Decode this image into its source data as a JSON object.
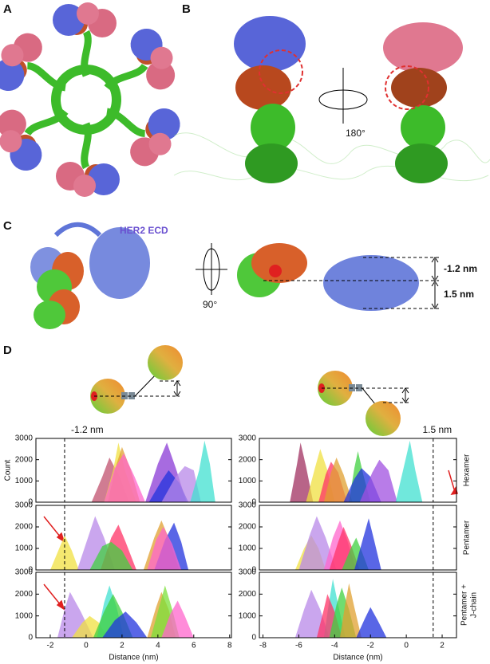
{
  "panel_labels": [
    "A",
    "B",
    "C",
    "D"
  ],
  "panel_b": {
    "rotation": "180°"
  },
  "panel_c": {
    "protein": "HER2 ECD",
    "rotation": "90°",
    "offsets": [
      "-1.2 nm",
      "1.5 nm"
    ]
  },
  "chart_data": [
    {
      "type": "area",
      "ylabel": "Count",
      "xlim": [
        -2.8,
        8.1
      ],
      "ylim": [
        0,
        3000
      ],
      "yticks": [
        0,
        1000,
        2000,
        3000
      ],
      "reference_line": {
        "x": -1.2,
        "label": "-1.2 nm"
      },
      "series": [
        {
          "color": "#c0506e",
          "x": [
            0.3,
            0.9,
            1.3,
            1.8,
            2.4
          ],
          "values": [
            0,
            1200,
            2100,
            1300,
            0
          ]
        },
        {
          "color": "#f0e040",
          "x": [
            1.0,
            1.5,
            1.8,
            2.2,
            2.8
          ],
          "values": [
            0,
            1500,
            2800,
            1400,
            0
          ]
        },
        {
          "color": "#e0a030",
          "x": [
            1.2,
            1.7,
            2.0,
            2.5,
            3.0
          ],
          "values": [
            0,
            1800,
            2600,
            1500,
            0
          ]
        },
        {
          "color": "#ff66cc",
          "x": [
            1.0,
            1.6,
            2.1,
            2.7,
            3.3
          ],
          "values": [
            0,
            1600,
            2300,
            1200,
            0
          ]
        },
        {
          "color": "#8a3ad6",
          "x": [
            3.3,
            4.0,
            4.5,
            5.0,
            5.6
          ],
          "values": [
            0,
            1800,
            2800,
            1600,
            0
          ]
        },
        {
          "color": "#2233dd",
          "x": [
            3.5,
            4.2,
            4.6,
            5.2,
            5.7
          ],
          "values": [
            0,
            1000,
            1500,
            900,
            0
          ]
        },
        {
          "color": "#b888e8",
          "x": [
            4.2,
            5.0,
            5.5,
            6.0,
            6.4
          ],
          "values": [
            0,
            1200,
            1700,
            1500,
            0
          ]
        },
        {
          "color": "#40e0d0",
          "x": [
            5.8,
            6.3,
            6.6,
            6.9,
            7.2
          ],
          "values": [
            0,
            1500,
            2900,
            1800,
            0
          ]
        }
      ]
    },
    {
      "type": "area",
      "row_label": [
        "Hexamer"
      ],
      "xlim": [
        -8.2,
        2.8
      ],
      "ylim": [
        0,
        3000
      ],
      "yticks": [
        0,
        1000,
        2000,
        3000
      ],
      "reference_line": {
        "x": 1.5,
        "label": "1.5 nm"
      },
      "series": [
        {
          "color": "#a03060",
          "x": [
            -6.5,
            -6.1,
            -5.9,
            -5.6,
            -5.2
          ],
          "values": [
            0,
            1800,
            2800,
            1700,
            0
          ]
        },
        {
          "color": "#f0e040",
          "x": [
            -5.6,
            -5.1,
            -4.8,
            -4.4,
            -4.0
          ],
          "values": [
            0,
            1600,
            2500,
            1500,
            0
          ]
        },
        {
          "color": "#ff3366",
          "x": [
            -4.9,
            -4.5,
            -4.2,
            -3.8,
            -3.3
          ],
          "values": [
            0,
            1300,
            1900,
            1400,
            0
          ]
        },
        {
          "color": "#e0a030",
          "x": [
            -4.6,
            -4.2,
            -3.9,
            -3.5,
            -3.0
          ],
          "values": [
            0,
            1400,
            2100,
            1300,
            0
          ]
        },
        {
          "color": "#40d040",
          "x": [
            -3.2,
            -2.9,
            -2.7,
            -2.4,
            -2.0
          ],
          "values": [
            0,
            1600,
            2400,
            1300,
            0
          ]
        },
        {
          "color": "#2233dd",
          "x": [
            -3.5,
            -2.9,
            -2.5,
            -2.0,
            -1.4
          ],
          "values": [
            0,
            1100,
            1600,
            1200,
            0
          ]
        },
        {
          "color": "#a050e0",
          "x": [
            -2.6,
            -1.9,
            -1.5,
            -1.0,
            -0.5
          ],
          "values": [
            0,
            1400,
            2000,
            1500,
            0
          ]
        },
        {
          "color": "#40e0d0",
          "x": [
            -0.6,
            -0.1,
            0.2,
            0.5,
            0.9
          ],
          "values": [
            0,
            1800,
            2900,
            1500,
            0
          ]
        }
      ]
    },
    {
      "type": "area",
      "xlim": [
        -2.8,
        8.1
      ],
      "ylim": [
        0,
        3000
      ],
      "yticks": [
        0,
        1000,
        2000,
        3000
      ],
      "reference_line": {
        "x": -1.2
      },
      "series": [
        {
          "color": "#f0e040",
          "x": [
            -2.0,
            -1.5,
            -1.2,
            -0.8,
            -0.4
          ],
          "values": [
            0,
            1000,
            1600,
            900,
            0
          ]
        },
        {
          "color": "#b888e8",
          "x": [
            -0.5,
            0.1,
            0.5,
            1.0,
            1.6
          ],
          "values": [
            0,
            1500,
            2500,
            1500,
            0
          ]
        },
        {
          "color": "#ff3366",
          "x": [
            0.8,
            1.4,
            1.8,
            2.2,
            2.8
          ],
          "values": [
            0,
            1500,
            2100,
            1300,
            0
          ]
        },
        {
          "color": "#40d040",
          "x": [
            0.2,
            0.9,
            1.4,
            2.0,
            2.6
          ],
          "values": [
            0,
            1100,
            1300,
            900,
            0
          ]
        },
        {
          "color": "#e0a030",
          "x": [
            3.2,
            3.8,
            4.2,
            4.6,
            5.2
          ],
          "values": [
            0,
            1500,
            2300,
            1500,
            0
          ]
        },
        {
          "color": "#2233dd",
          "x": [
            3.8,
            4.4,
            4.9,
            5.3,
            5.7
          ],
          "values": [
            0,
            1400,
            2200,
            1300,
            0
          ]
        },
        {
          "color": "#ff66cc",
          "x": [
            3.4,
            3.9,
            4.3,
            4.8,
            5.3
          ],
          "values": [
            0,
            1400,
            2000,
            1200,
            0
          ]
        }
      ]
    },
    {
      "type": "area",
      "row_label": [
        "Pentamer"
      ],
      "xlim": [
        -8.2,
        2.8
      ],
      "ylim": [
        0,
        3000
      ],
      "yticks": [
        0,
        1000,
        2000,
        3000
      ],
      "reference_line": {
        "x": 1.5
      },
      "series": [
        {
          "color": "#f0e040",
          "x": [
            -6.2,
            -5.7,
            -5.3,
            -4.9,
            -4.5
          ],
          "values": [
            0,
            1000,
            1600,
            1000,
            0
          ]
        },
        {
          "color": "#b888e8",
          "x": [
            -6.0,
            -5.4,
            -5.0,
            -4.5,
            -3.9
          ],
          "values": [
            0,
            1600,
            2500,
            1500,
            0
          ]
        },
        {
          "color": "#ff66cc",
          "x": [
            -4.6,
            -4.1,
            -3.7,
            -3.3,
            -2.8
          ],
          "values": [
            0,
            1500,
            2300,
            1400,
            0
          ]
        },
        {
          "color": "#ff3366",
          "x": [
            -4.3,
            -3.8,
            -3.5,
            -3.1,
            -2.6
          ],
          "values": [
            0,
            1300,
            2000,
            1200,
            0
          ]
        },
        {
          "color": "#40d040",
          "x": [
            -3.6,
            -3.1,
            -2.8,
            -2.5,
            -2.1
          ],
          "values": [
            0,
            1000,
            1500,
            900,
            0
          ]
        },
        {
          "color": "#2233dd",
          "x": [
            -2.9,
            -2.4,
            -2.1,
            -1.8,
            -1.4
          ],
          "values": [
            0,
            1500,
            2400,
            1400,
            0
          ]
        }
      ]
    },
    {
      "type": "area",
      "xlabel": "Distance (nm)",
      "xlim": [
        -2.8,
        8.1
      ],
      "ylim": [
        0,
        3000
      ],
      "xticks": [
        -2,
        0,
        2,
        4,
        6,
        8
      ],
      "yticks": [
        0,
        1000,
        2000,
        3000
      ],
      "reference_line": {
        "x": -1.2
      },
      "series": [
        {
          "color": "#b888e8",
          "x": [
            -1.6,
            -1.2,
            -0.9,
            -0.3,
            0.4
          ],
          "values": [
            0,
            1300,
            2100,
            1200,
            0
          ]
        },
        {
          "color": "#f0e040",
          "x": [
            -0.8,
            -0.2,
            0.2,
            0.7,
            1.2
          ],
          "values": [
            0,
            700,
            1000,
            700,
            0
          ]
        },
        {
          "color": "#40e0d0",
          "x": [
            0.6,
            1.0,
            1.3,
            1.7,
            2.1
          ],
          "values": [
            0,
            1600,
            2400,
            1400,
            0
          ]
        },
        {
          "color": "#40d040",
          "x": [
            0.4,
            1.0,
            1.5,
            2.0,
            2.6
          ],
          "values": [
            0,
            1200,
            2000,
            1200,
            0
          ]
        },
        {
          "color": "#2233dd",
          "x": [
            0.9,
            1.6,
            2.2,
            2.8,
            3.4
          ],
          "values": [
            0,
            800,
            1200,
            700,
            0
          ]
        },
        {
          "color": "#e0a030",
          "x": [
            3.4,
            3.9,
            4.2,
            4.6,
            5.0
          ],
          "values": [
            0,
            1400,
            2100,
            1300,
            0
          ]
        },
        {
          "color": "#7be03a",
          "x": [
            3.6,
            4.1,
            4.4,
            4.8,
            5.2
          ],
          "values": [
            0,
            1500,
            2400,
            1300,
            0
          ]
        },
        {
          "color": "#ff66cc",
          "x": [
            4.2,
            4.7,
            5.1,
            5.5,
            6.0
          ],
          "values": [
            0,
            1100,
            1700,
            1000,
            0
          ]
        }
      ]
    },
    {
      "type": "area",
      "xlabel": "Distance (nm)",
      "row_label": [
        "Pentamer +",
        "J-chain"
      ],
      "xlim": [
        -8.2,
        2.8
      ],
      "ylim": [
        0,
        3000
      ],
      "xticks": [
        -8,
        -6,
        -4,
        -2,
        0,
        2
      ],
      "yticks": [
        0,
        1000,
        2000,
        3000
      ],
      "reference_line": {
        "x": 1.5
      },
      "series": [
        {
          "color": "#b888e8",
          "x": [
            -6.2,
            -5.7,
            -5.3,
            -4.8,
            -4.3
          ],
          "values": [
            0,
            1300,
            2200,
            1300,
            0
          ]
        },
        {
          "color": "#40e0d0",
          "x": [
            -4.6,
            -4.3,
            -4.1,
            -3.8,
            -3.4
          ],
          "values": [
            0,
            1700,
            2700,
            1500,
            0
          ]
        },
        {
          "color": "#ff3366",
          "x": [
            -5.0,
            -4.6,
            -4.4,
            -4.0,
            -3.6
          ],
          "values": [
            0,
            1300,
            2000,
            1200,
            0
          ]
        },
        {
          "color": "#40d040",
          "x": [
            -4.3,
            -3.9,
            -3.6,
            -3.2,
            -2.8
          ],
          "values": [
            0,
            1500,
            2300,
            1300,
            0
          ]
        },
        {
          "color": "#e0a030",
          "x": [
            -3.7,
            -3.4,
            -3.2,
            -2.9,
            -2.5
          ],
          "values": [
            0,
            1600,
            2500,
            1400,
            0
          ]
        },
        {
          "color": "#2233dd",
          "x": [
            -2.8,
            -2.3,
            -2.0,
            -1.6,
            -1.1
          ],
          "values": [
            0,
            900,
            1400,
            800,
            0
          ]
        }
      ]
    }
  ]
}
